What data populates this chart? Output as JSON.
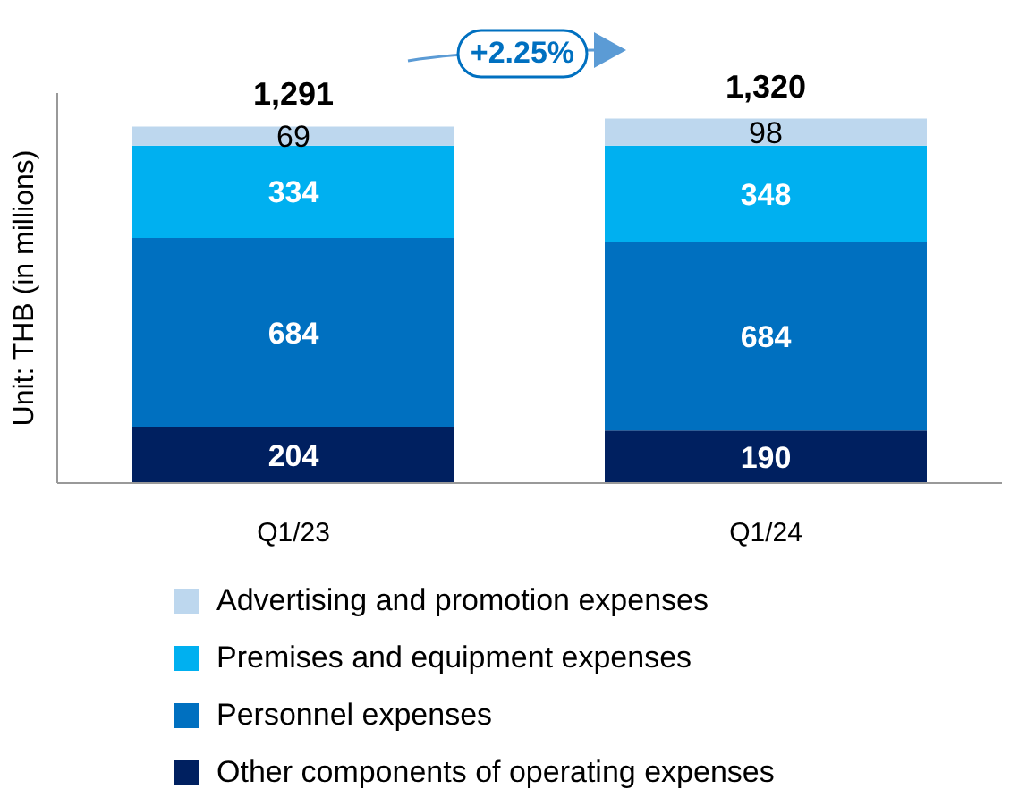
{
  "chart_data": {
    "type": "bar",
    "stacked": true,
    "ylabel": "Unit: THB (in millions)",
    "categories": [
      "Q1/23",
      "Q1/24"
    ],
    "series": [
      {
        "name": "Other components of operating expenses",
        "color": "#002060",
        "values": [
          204,
          190
        ]
      },
      {
        "name": "Personnel expenses",
        "color": "#0070c0",
        "values": [
          684,
          684
        ]
      },
      {
        "name": "Premises and equipment expenses",
        "color": "#00b0f0",
        "values": [
          334,
          348
        ]
      },
      {
        "name": "Advertising and promotion expenses",
        "color": "#bdd7ee",
        "values": [
          69,
          98
        ]
      }
    ],
    "data_labels": true,
    "totals": [
      "1,291",
      "1,320"
    ],
    "annotations": [
      "+2.25%"
    ],
    "legend": "bottom",
    "grid": false
  }
}
